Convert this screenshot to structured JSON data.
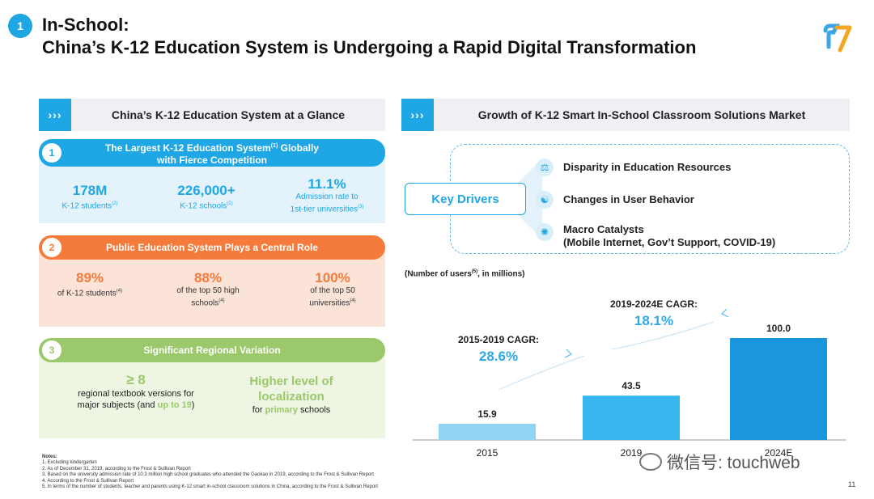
{
  "header": {
    "badge": "1",
    "title_line1": "In-School:",
    "title_line2": "China’s K-12 Education System is Undergoing a Rapid Digital Transformation"
  },
  "left_panel": {
    "title": "China’s K-12 Education System at a Glance",
    "section1": {
      "number": "1",
      "title_line1": "The Largest K-12 Education System",
      "title_sup": "(1)",
      "title_line1_end": " Globally",
      "title_line2": "with Fierce Competition",
      "stats": [
        {
          "value": "178M",
          "label": "K-12 students",
          "sup": "(2)",
          "label2": ""
        },
        {
          "value": "226,000+",
          "label": "K-12 schools",
          "sup": "(2)",
          "label2": ""
        },
        {
          "value": "11.1%",
          "label": "Admission rate to",
          "sup": "",
          "label2": "1st-tier universities",
          "sup2": "(3)"
        }
      ]
    },
    "section2": {
      "number": "2",
      "title": "Public Education System Plays a Central Role",
      "stats": [
        {
          "value": "89%",
          "label": "of K-12 students",
          "sup": "(4)"
        },
        {
          "value": "88%",
          "label": "of the top 50 high",
          "label2": "schools",
          "sup": "(4)"
        },
        {
          "value": "100%",
          "label": "of the top 50",
          "label2": "universities",
          "sup": "(4)"
        }
      ]
    },
    "section3": {
      "number": "3",
      "title": "Significant Regional Variation",
      "stat1_value": "≥ 8",
      "stat1_line1": "regional textbook versions for",
      "stat1_line2_a": "major subjects (and ",
      "stat1_line2_b": "up to 19",
      "stat1_line2_c": ")",
      "stat2_line1": "Higher level of",
      "stat2_line2": "localization",
      "stat2_line3_a": "for ",
      "stat2_line3_b": "primary",
      "stat2_line3_c": " schools"
    }
  },
  "right_panel": {
    "title": "Growth of  K-12 Smart In-School Classroom Solutions Market",
    "key_drivers_label": "Key Drivers",
    "drivers": [
      {
        "icon": "scale-icon",
        "glyph": "⚖",
        "line1": "Disparity in Education Resources",
        "line2": ""
      },
      {
        "icon": "behavior-icon",
        "glyph": "☯",
        "line1": "Changes in User Behavior",
        "line2": ""
      },
      {
        "icon": "catalyst-icon",
        "glyph": "✺",
        "line1": "Macro Catalysts",
        "line2": "(Mobile Internet, Gov’t Support, COVID-19)"
      }
    ],
    "units_label": "(Number of users",
    "units_sup": "(5)",
    "units_label_end": ", in millions)"
  },
  "chart_data": {
    "type": "bar",
    "categories": [
      "2015",
      "2019",
      "2024E"
    ],
    "values": [
      15.9,
      43.5,
      100.0
    ],
    "value_labels": [
      "15.9",
      "43.5",
      "100.0"
    ],
    "colors": [
      "#8fd3f5",
      "#38b6ee",
      "#1a96dc"
    ],
    "ylim": [
      0,
      100
    ],
    "annotations": [
      {
        "label": "2015-2019 CAGR:",
        "value": "28.6%"
      },
      {
        "label": "2019-2024E CAGR:",
        "value": "18.1%"
      }
    ]
  },
  "notes": {
    "title": "Notes:",
    "items": [
      "1. Excluding kindergarten",
      "2. As of December 31, 2019, according to the Frost & Sullivan Report",
      "3. Based on the university admission rate of 10.3 million high school graduates who attended the Gaokao in 2019, according to the Frost & Sullivan Report",
      "4. According to the Frost & Sullivan Report",
      "5. In terms of the number of students, teacher and parents using K-12 smart in-school classroom solutions in China, according to the Frost & Sullivan Report"
    ]
  },
  "watermark": "微信号: touchweb",
  "page_number": "11",
  "colors": {
    "blue": "#1ea7e4",
    "orange": "#f47b3c",
    "green": "#9bc86a"
  }
}
